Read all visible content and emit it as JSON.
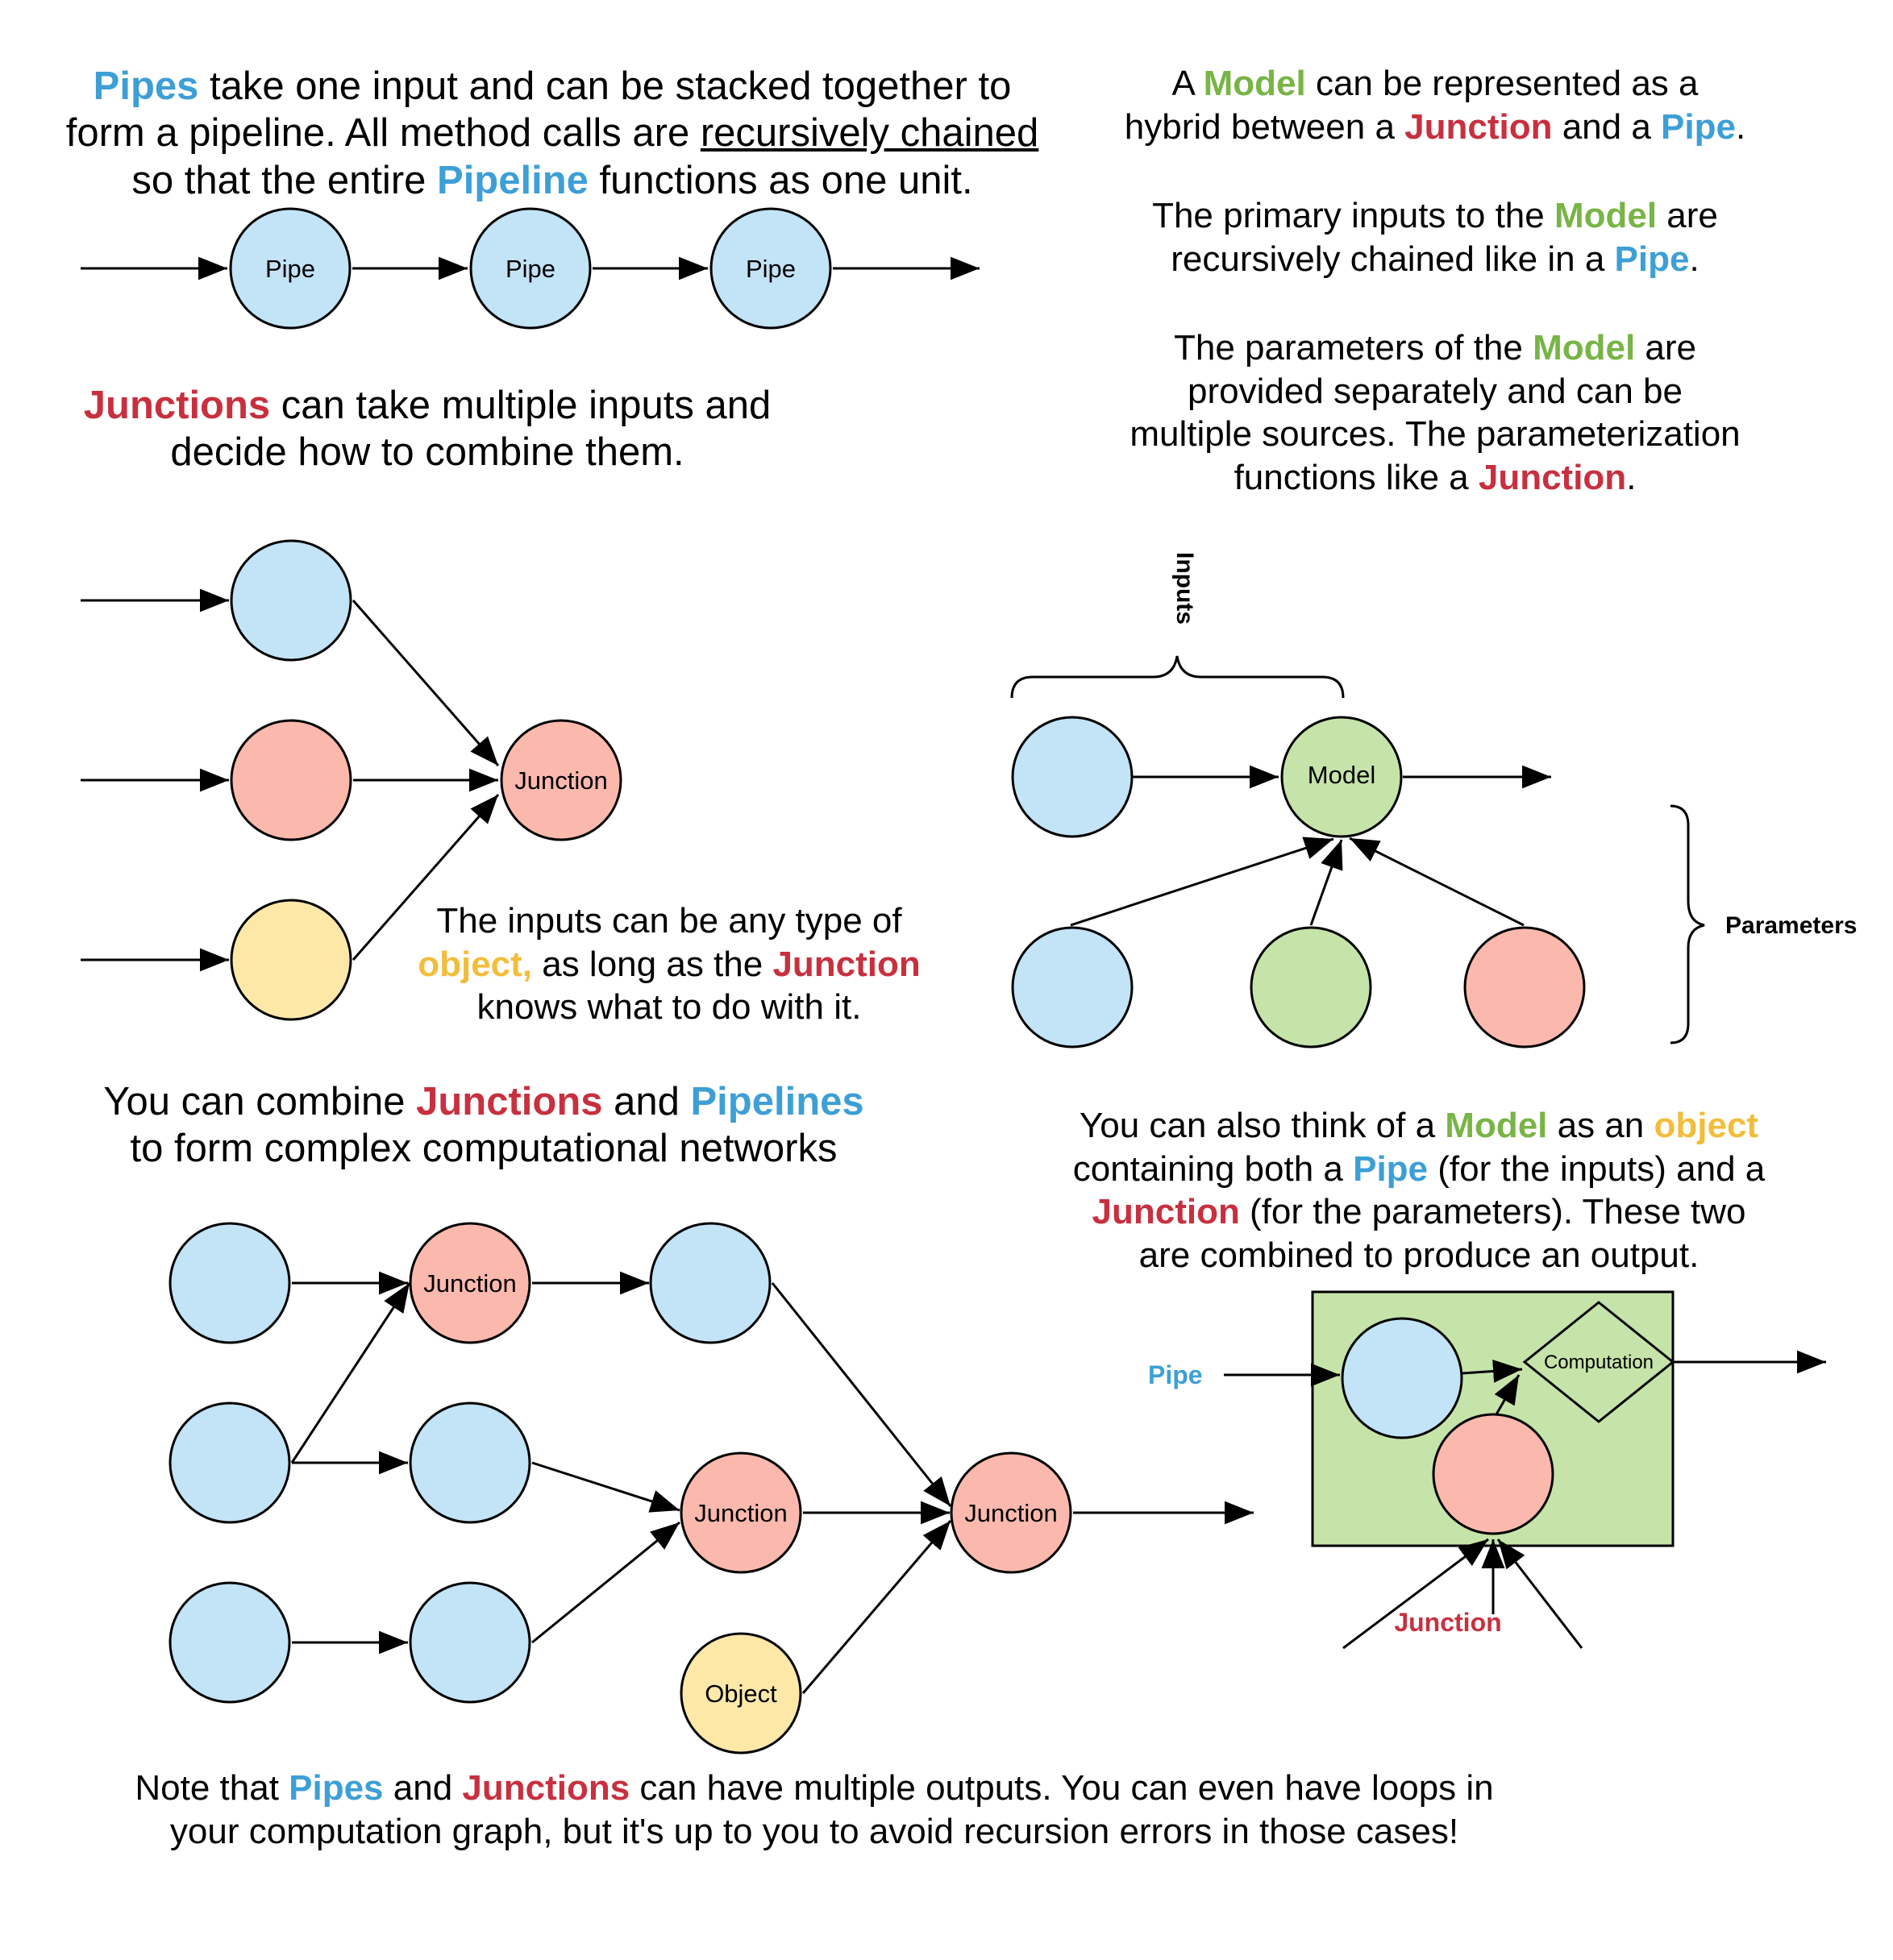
{
  "texts": {
    "pipes": {
      "l1_k1": "Pipes",
      "l1_rest": " take one input and can be stacked together to",
      "l2_pre": "form a pipeline. All method calls are ",
      "l2_u": "recursively chained",
      "l3_pre": "so that the entire ",
      "l3_k": "Pipeline",
      "l3_post": " functions as one unit."
    },
    "junctions": {
      "l1_k": "Junctions",
      "l1_rest": " can take multiple inputs and",
      "l2": "decide how to combine them."
    },
    "inputs_any": {
      "l1": "The inputs can be any type of",
      "l2_k1": "object,",
      "l2_mid": " as long as the ",
      "l2_k2": "Junction",
      "l3": "knows what to do with it."
    },
    "combine": {
      "l1_pre": "You can combine ",
      "l1_k1": "Junctions",
      "l1_mid": " and ",
      "l1_k2": "Pipelines",
      "l2": "to form complex computational networks"
    },
    "model_hybrid": {
      "l1_pre": "A ",
      "l1_k": "Model",
      "l1_post": " can be represented as a",
      "l2_pre": "hybrid between a ",
      "l2_k1": "Junction",
      "l2_mid": " and a ",
      "l2_k2": "Pipe",
      "l2_post": "."
    },
    "model_inputs": {
      "l1_pre": "The primary inputs to the ",
      "l1_k": "Model",
      "l1_post": " are",
      "l2_pre": "recursively chained like in a ",
      "l2_k": "Pipe",
      "l2_post": "."
    },
    "model_params": {
      "l1_pre": "The parameters of the ",
      "l1_k": "Model",
      "l1_post": " are",
      "l2": "provided separately and can be",
      "l3": "multiple sources. The parameterization",
      "l4_pre": "functions like a ",
      "l4_k": "Junction",
      "l4_post": "."
    },
    "model_object": {
      "l1_pre": "You can also think of a ",
      "l1_k1": "Model",
      "l1_mid": " as an ",
      "l1_k2": "object",
      "l2_pre": "containing both a ",
      "l2_k": "Pipe",
      "l2_post": " (for the inputs) and a",
      "l3_k": "Junction",
      "l3_post": " (for the parameters). These two",
      "l4": "are combined to produce an output."
    },
    "note": {
      "l1_pre": "Note that ",
      "l1_k1": "Pipes",
      "l1_mid": " and ",
      "l1_k2": "Junctions",
      "l1_post": " can have multiple outputs. You can even have loops in",
      "l2": "your computation graph, but it's up to you to avoid recursion errors in those cases!"
    }
  },
  "labels": {
    "pipe": "Pipe",
    "junction": "Junction",
    "model": "Model",
    "object": "Object",
    "computation": "Computation",
    "inputs": "Inputs",
    "parameters": "Parameters",
    "pipe_side": "Pipe",
    "junction_side": "Junction"
  },
  "colors": {
    "pipe_blue": "#c3e3f6",
    "junction_red": "#fbb9ad",
    "object_yellow": "#fde8a8",
    "model_green": "#c6e4aa",
    "keyword_blue": "#3d9fd6",
    "keyword_red": "#c8303f",
    "keyword_green": "#78b446",
    "keyword_yellow": "#f3bd3c"
  }
}
